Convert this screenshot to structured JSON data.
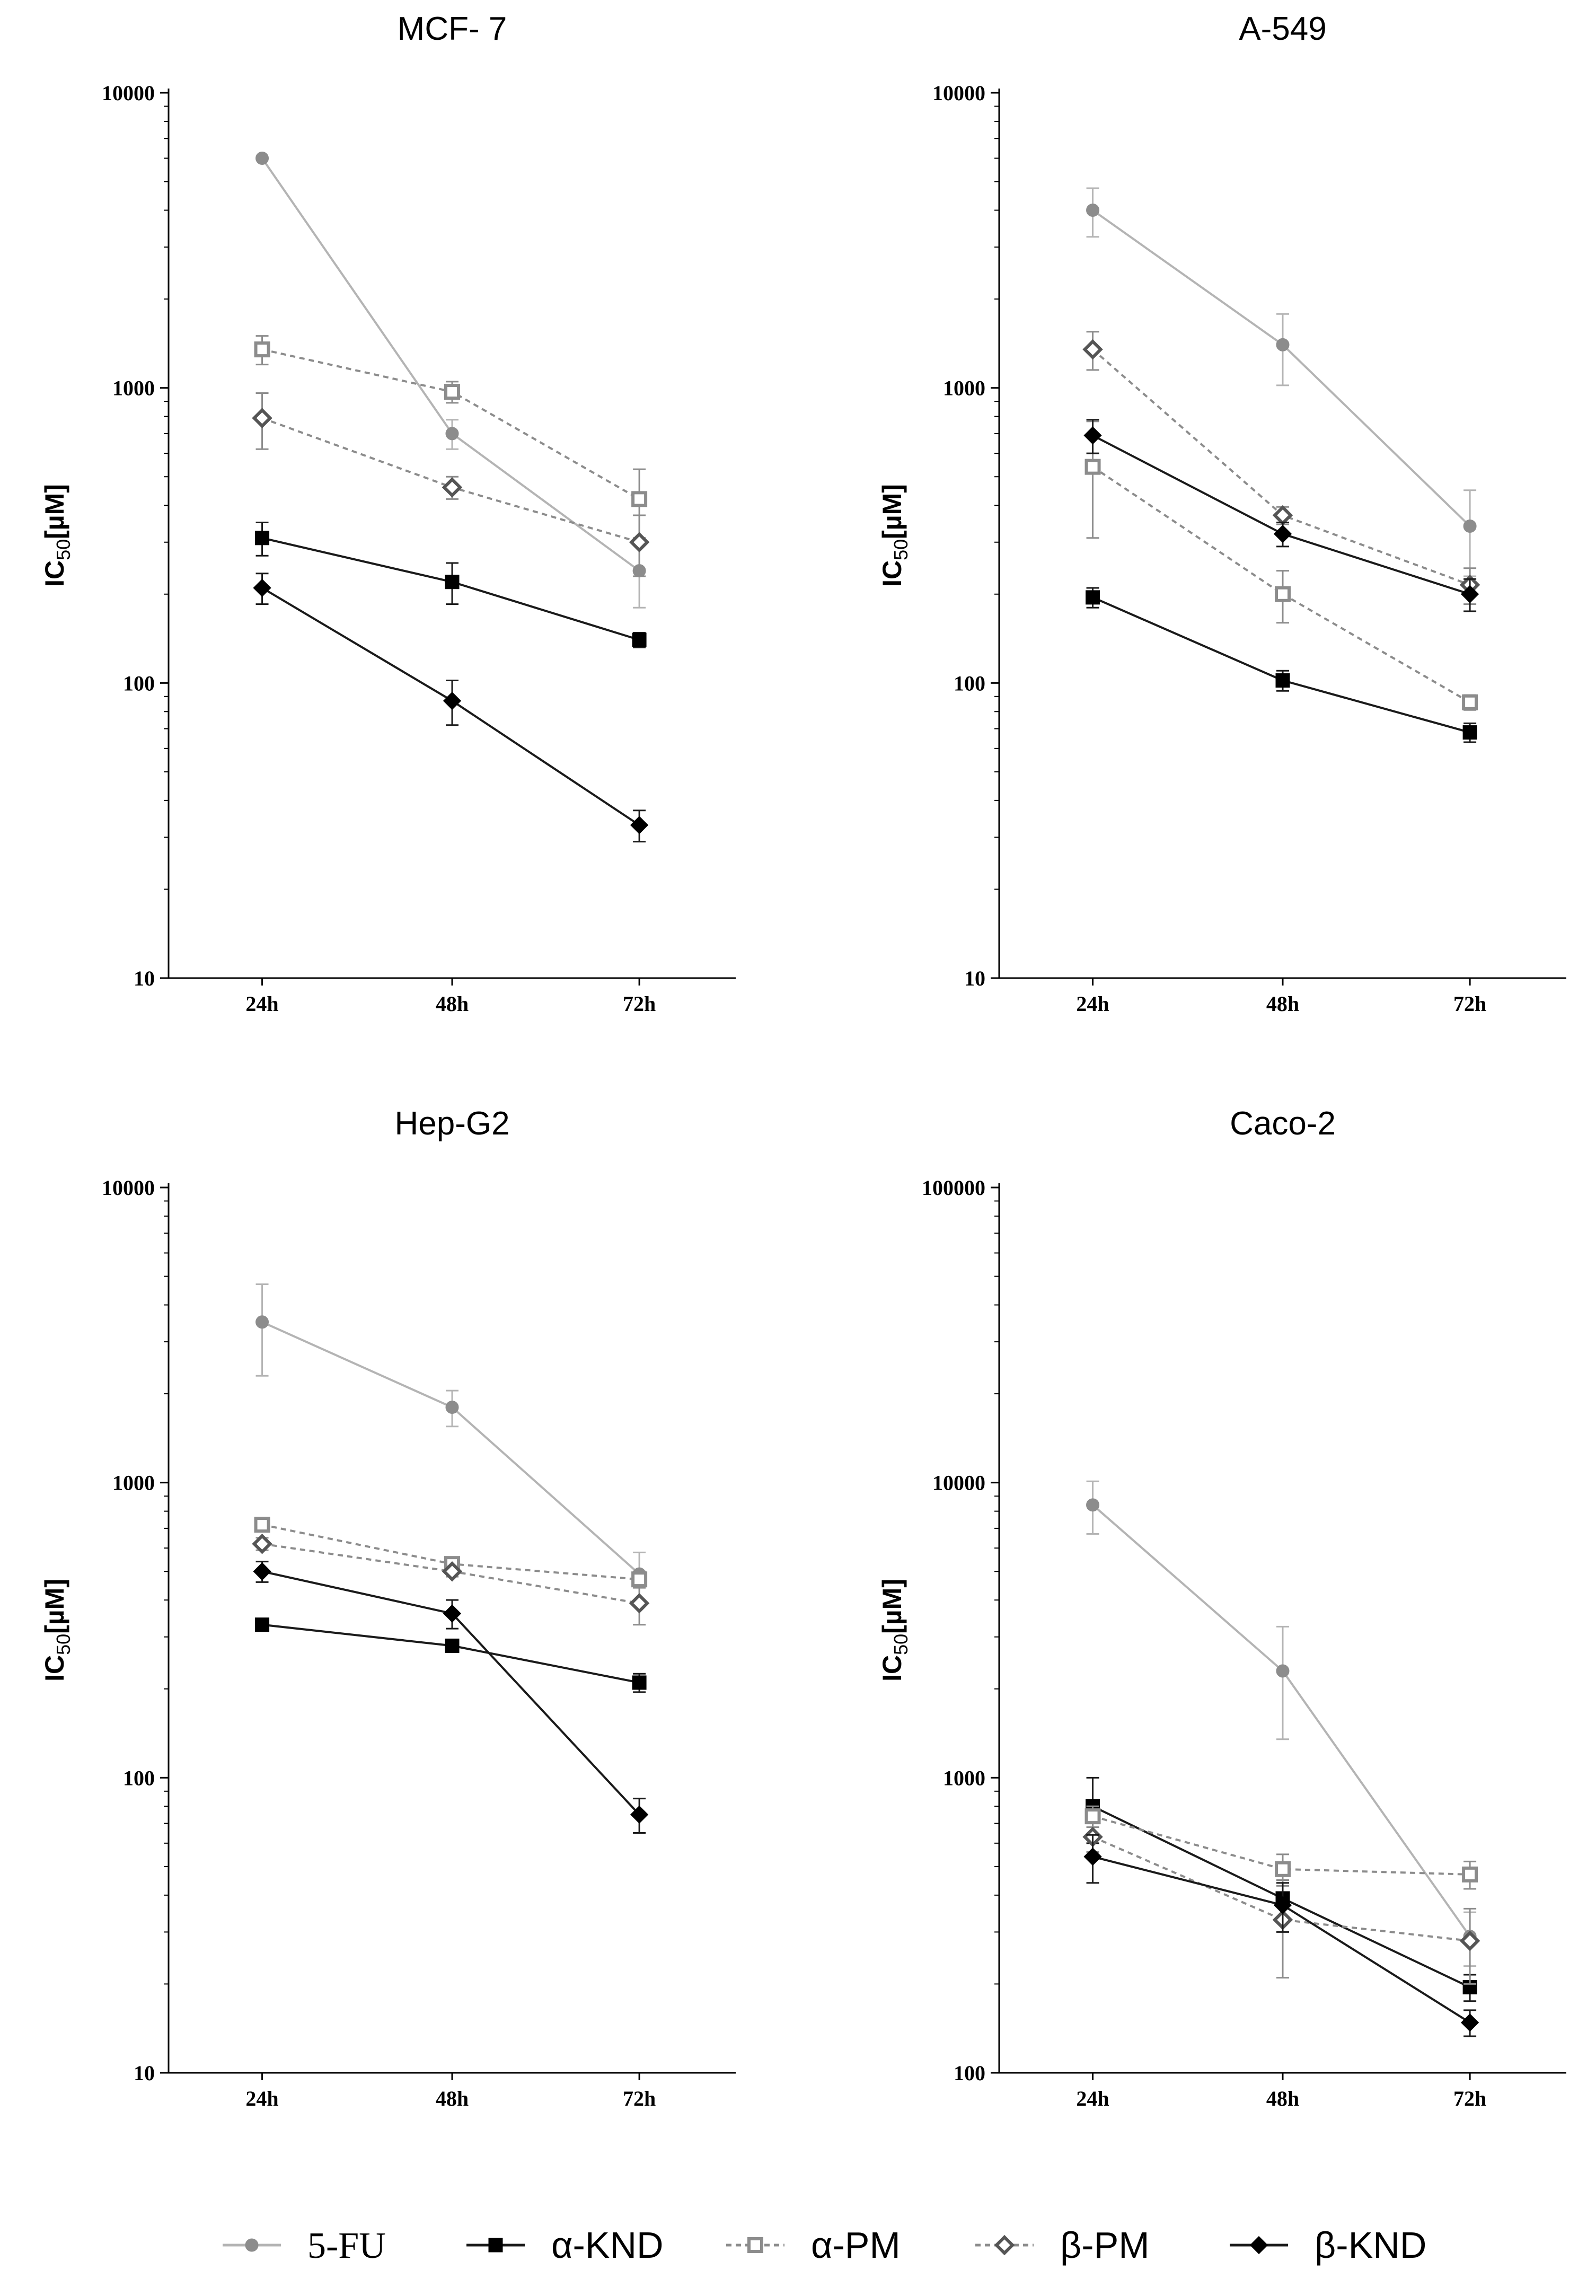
{
  "chart_data": [
    {
      "type": "line",
      "title": "MCF- 7",
      "categories": [
        "24h",
        "48h",
        "72h"
      ],
      "yscale": "log",
      "ylim": [
        10,
        10000
      ],
      "ytick_labels": [
        "10",
        "100",
        "1000",
        "10000"
      ],
      "ylabel": {
        "main": "IC",
        "sub": "50",
        "unit": "[µM]"
      },
      "series": [
        {
          "name": "5-FU",
          "values": [
            6000,
            700,
            240
          ],
          "errors": [
            0,
            80,
            60
          ]
        },
        {
          "name": "α-KND",
          "values": [
            310,
            220,
            140
          ],
          "errors": [
            40,
            35,
            8
          ]
        },
        {
          "name": "α-PM",
          "values": [
            1350,
            970,
            420
          ],
          "errors": [
            150,
            80,
            110
          ]
        },
        {
          "name": "β-PM",
          "values": [
            790,
            460,
            300
          ],
          "errors": [
            170,
            40,
            70
          ]
        },
        {
          "name": "β-KND",
          "values": [
            210,
            87,
            33
          ],
          "errors": [
            25,
            15,
            4
          ]
        }
      ]
    },
    {
      "type": "line",
      "title": "A-549",
      "categories": [
        "24h",
        "48h",
        "72h"
      ],
      "yscale": "log",
      "ylim": [
        10,
        10000
      ],
      "ytick_labels": [
        "10",
        "100",
        "1000",
        "10000"
      ],
      "ylabel": {
        "main": "IC",
        "sub": "50",
        "unit": "[µM]"
      },
      "series": [
        {
          "name": "5-FU",
          "values": [
            4000,
            1400,
            340
          ],
          "errors": [
            750,
            380,
            110
          ]
        },
        {
          "name": "α-KND",
          "values": [
            195,
            102,
            68
          ],
          "errors": [
            15,
            8,
            5
          ]
        },
        {
          "name": "α-PM",
          "values": [
            540,
            200,
            86
          ],
          "errors": [
            230,
            40,
            5
          ]
        },
        {
          "name": "β-PM",
          "values": [
            1350,
            370,
            215
          ],
          "errors": [
            200,
            25,
            30
          ]
        },
        {
          "name": "β-KND",
          "values": [
            690,
            320,
            200
          ],
          "errors": [
            90,
            30,
            25
          ]
        }
      ]
    },
    {
      "type": "line",
      "title": "Hep-G2",
      "categories": [
        "24h",
        "48h",
        "72h"
      ],
      "yscale": "log",
      "ylim": [
        10,
        10000
      ],
      "ytick_labels": [
        "10",
        "100",
        "1000",
        "10000"
      ],
      "ylabel": {
        "main": "IC",
        "sub": "50",
        "unit": "[µM]"
      },
      "series": [
        {
          "name": "5-FU",
          "values": [
            3500,
            1800,
            490
          ],
          "errors": [
            1200,
            250,
            90
          ]
        },
        {
          "name": "α-KND",
          "values": [
            330,
            280,
            210
          ],
          "errors": [
            8,
            10,
            15
          ]
        },
        {
          "name": "α-PM",
          "values": [
            720,
            530,
            470
          ],
          "errors": [
            30,
            20,
            30
          ]
        },
        {
          "name": "β-PM",
          "values": [
            620,
            500,
            390
          ],
          "errors": [
            30,
            20,
            60
          ]
        },
        {
          "name": "β-KND",
          "values": [
            500,
            360,
            75
          ],
          "errors": [
            40,
            40,
            10
          ]
        }
      ]
    },
    {
      "type": "line",
      "title": "Caco-2",
      "categories": [
        "24h",
        "48h",
        "72h"
      ],
      "yscale": "log",
      "ylim": [
        100,
        100000
      ],
      "ytick_labels": [
        "100",
        "1000",
        "10000",
        "100000"
      ],
      "ylabel": {
        "main": "IC",
        "sub": "50",
        "unit": "[µM]"
      },
      "series": [
        {
          "name": "5-FU",
          "values": [
            8400,
            2300,
            290
          ],
          "errors": [
            1700,
            950,
            60
          ]
        },
        {
          "name": "α-KND",
          "values": [
            800,
            390,
            195
          ],
          "errors": [
            200,
            60,
            20
          ]
        },
        {
          "name": "α-PM",
          "values": [
            740,
            490,
            470
          ],
          "errors": [
            60,
            60,
            50
          ]
        },
        {
          "name": "β-PM",
          "values": [
            630,
            330,
            280
          ],
          "errors": [
            70,
            120,
            80
          ]
        },
        {
          "name": "β-KND",
          "values": [
            540,
            370,
            148
          ],
          "errors": [
            100,
            70,
            15
          ]
        }
      ]
    }
  ],
  "legend": {
    "placement": "bottom",
    "items": [
      {
        "name": "5-FU"
      },
      {
        "name": "α-KND"
      },
      {
        "name": "α-PM"
      },
      {
        "name": "β-PM"
      },
      {
        "name": "β-KND"
      }
    ]
  },
  "styles": {
    "5-FU": {
      "color": "#b4b4b4",
      "marker_fill": "#8c8c8c",
      "marker": "circle",
      "dash": ""
    },
    "α-KND": {
      "color": "#1a1a1a",
      "marker_fill": "#000000",
      "marker": "square",
      "dash": ""
    },
    "α-PM": {
      "color": "#8c8c8c",
      "marker_fill": "#ffffff",
      "marker": "square-open",
      "dash": "10,8"
    },
    "β-PM": {
      "color": "#8c8c8c",
      "marker_fill": "#ffffff",
      "marker": "diamond-open",
      "dash": "10,8"
    },
    "β-KND": {
      "color": "#1a1a1a",
      "marker_fill": "#000000",
      "marker": "diamond",
      "dash": ""
    }
  }
}
